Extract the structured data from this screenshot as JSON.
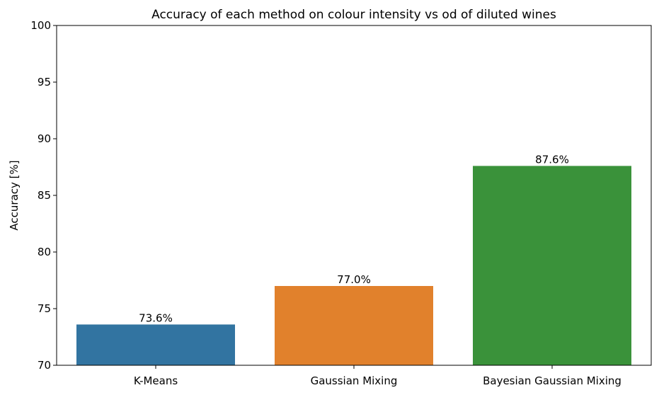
{
  "chart_data": {
    "type": "bar",
    "title": "Accuracy of each method on colour intensity vs od of diluted wines",
    "xlabel": "",
    "ylabel": "Accuracy [%]",
    "categories": [
      "K-Means",
      "Gaussian Mixing",
      "Bayesian Gaussian Mixing"
    ],
    "values": [
      73.6,
      77.0,
      87.6
    ],
    "data_labels": [
      "73.6%",
      "77.0%",
      "87.6%"
    ],
    "colors": [
      "#3274a1",
      "#e1812c",
      "#3a923a"
    ],
    "ylim": [
      70,
      100
    ],
    "yticks": [
      70,
      75,
      80,
      85,
      90,
      95,
      100
    ],
    "grid": false,
    "legend": "none"
  }
}
